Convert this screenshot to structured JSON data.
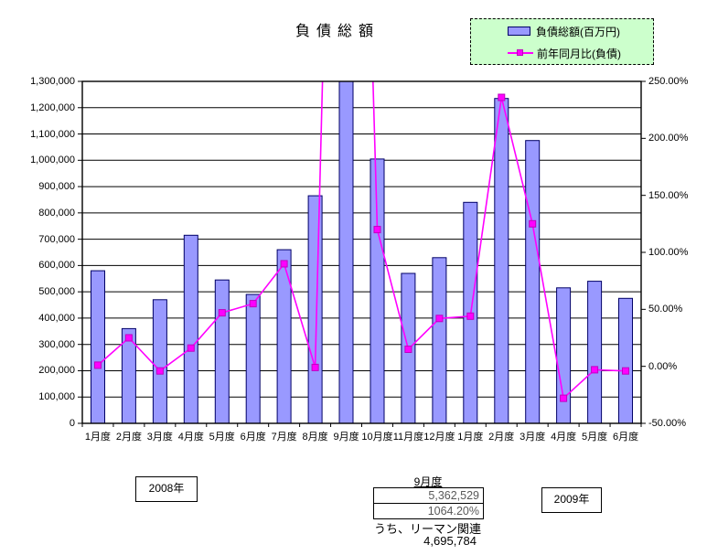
{
  "title": "負債総額",
  "legend": {
    "bg": "#CCFFCC",
    "items": [
      {
        "label": "負債総額(百万円)",
        "type": "bar"
      },
      {
        "label": "前年同月比(負債)",
        "type": "line"
      }
    ]
  },
  "chart_data": {
    "type": "bar+line combo",
    "title": "負債総額",
    "grid": true,
    "legend_position": "top-right",
    "categories": [
      "1月度",
      "2月度",
      "3月度",
      "4月度",
      "5月度",
      "6月度",
      "7月度",
      "8月度",
      "9月度",
      "10月度",
      "11月度",
      "12月度",
      "1月度",
      "2月度",
      "3月度",
      "4月度",
      "5月度",
      "6月度"
    ],
    "category_year_groups": [
      {
        "label": "2008年",
        "from": 0,
        "to": 11
      },
      {
        "label": "2009年",
        "from": 12,
        "to": 17
      }
    ],
    "series": [
      {
        "name": "負債総額(百万円)",
        "type": "bar",
        "axis": "left",
        "values": [
          580000,
          360000,
          470000,
          715000,
          545000,
          490000,
          660000,
          865000,
          5362529,
          1005000,
          570000,
          630000,
          840000,
          1235000,
          1075000,
          515000,
          540000,
          475000
        ]
      },
      {
        "name": "前年同月比(負債)",
        "type": "line",
        "axis": "right",
        "values": [
          1,
          25,
          -4,
          16,
          47,
          55,
          90,
          -1,
          1064.2,
          120,
          15,
          42,
          44,
          236,
          125,
          -28,
          -3,
          -4
        ]
      }
    ],
    "left_axis": {
      "min": 0,
      "max": 1300000,
      "step": 100000,
      "tick_labels": [
        "1,300,000",
        "1,200,000",
        "1,100,000",
        "1,000,000",
        "900,000",
        "800,000",
        "700,000",
        "600,000",
        "500,000",
        "400,000",
        "300,000",
        "200,000",
        "100,000",
        "0"
      ]
    },
    "right_axis": {
      "min": -50,
      "max": 250,
      "step": 50,
      "tick_labels": [
        "250.00%",
        "200.00%",
        "150.00%",
        "100.00%",
        "50.00%",
        "0.00%",
        "-50.00%"
      ]
    }
  },
  "annotations": {
    "year_2008": "2008年",
    "year_2009": "2009年",
    "month_label": "9月度",
    "value_total": "5,362,529",
    "value_pct": "1064.20%",
    "lehman_label": "うち、リーマン関連",
    "lehman_value": "4,695,784"
  },
  "colors": {
    "bar_fill": "#9999FF",
    "bar_border": "#000066",
    "line": "#FF00FF",
    "marker": "#FF00FF",
    "marker_border": "#C000C0",
    "grid": "#000000",
    "plot_border": "#000000",
    "callout_text": "#595959",
    "legend_bg": "#CCFFCC"
  }
}
